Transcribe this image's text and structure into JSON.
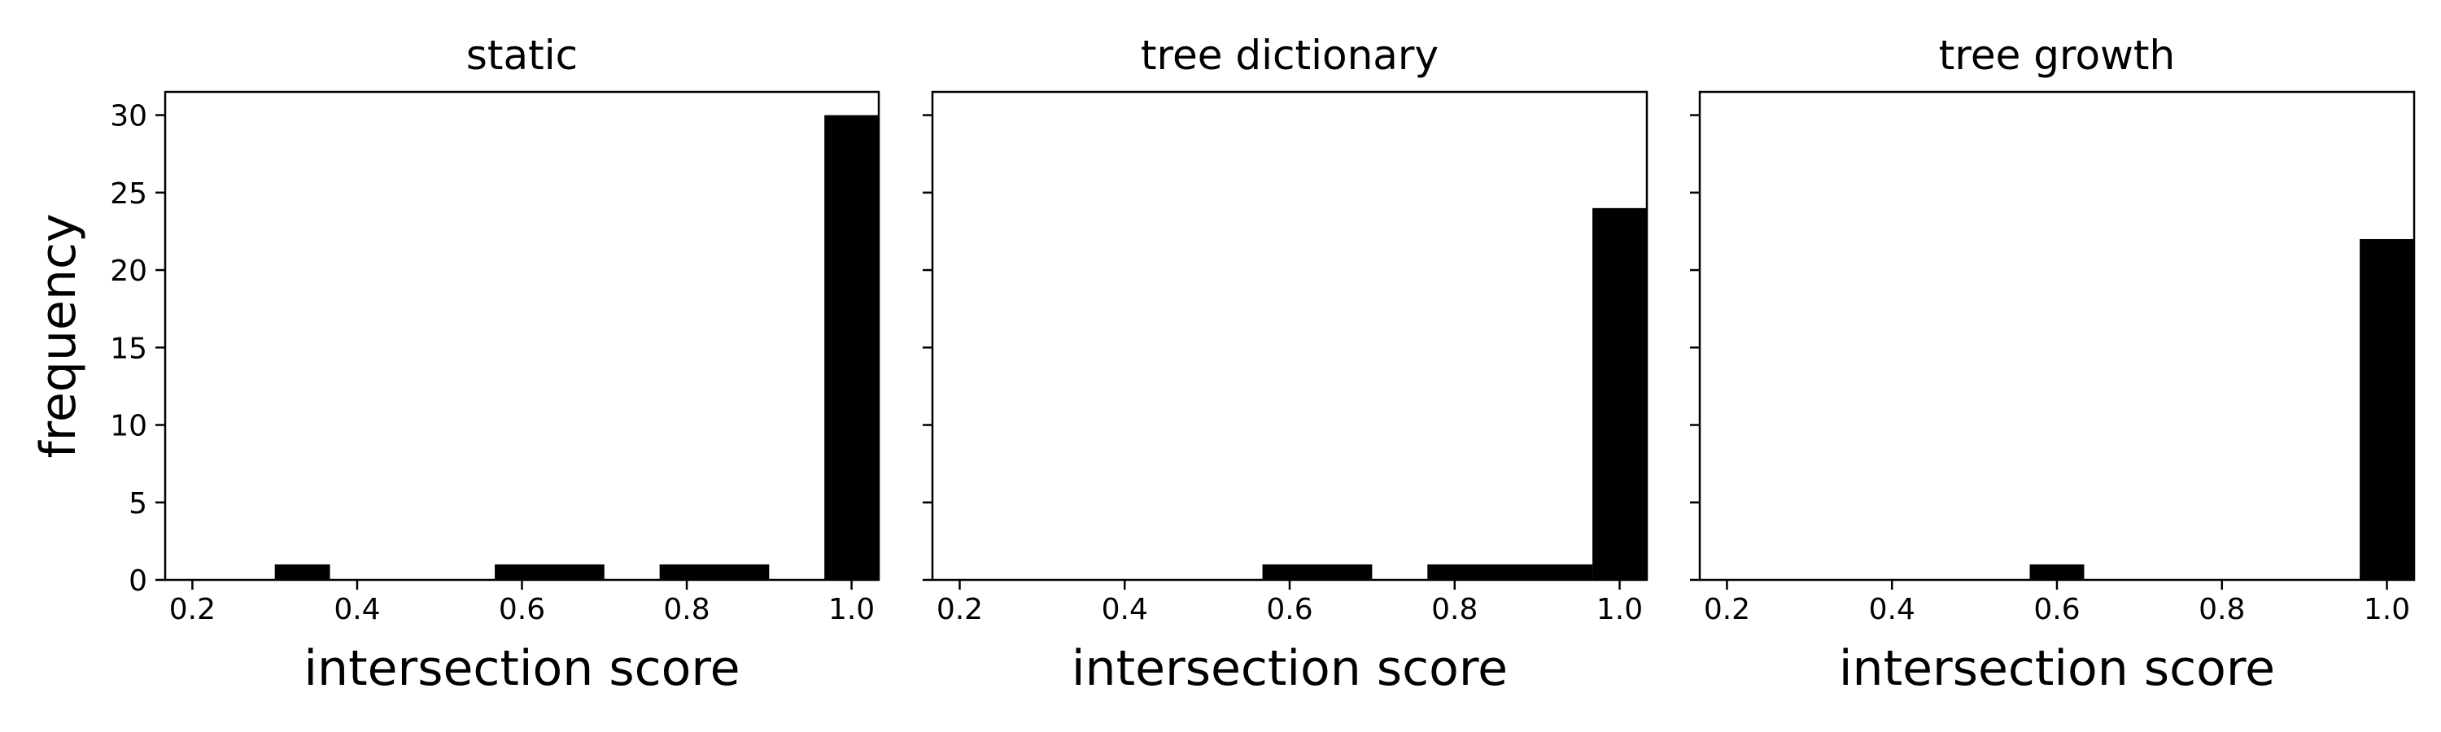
{
  "chart_data": [
    {
      "type": "bar",
      "title": "static",
      "xlabel": "intersection score",
      "ylabel": "frequency",
      "xlim": [
        0.167,
        1.033
      ],
      "ylim": [
        0,
        31.5
      ],
      "xticks": [
        "0.2",
        "0.4",
        "0.6",
        "0.8",
        "1.0"
      ],
      "yticks": [
        "0",
        "5",
        "10",
        "15",
        "20",
        "25",
        "30"
      ],
      "bars": [
        {
          "x0": 0.3,
          "x1": 0.367,
          "value": 1
        },
        {
          "x0": 0.567,
          "x1": 0.7,
          "value": 1
        },
        {
          "x0": 0.767,
          "x1": 0.9,
          "value": 1
        },
        {
          "x0": 0.967,
          "x1": 1.033,
          "value": 30
        }
      ],
      "color": "#000000"
    },
    {
      "type": "bar",
      "title": "tree dictionary",
      "xlabel": "intersection score",
      "ylabel": "",
      "xlim": [
        0.167,
        1.033
      ],
      "ylim": [
        0,
        31.5
      ],
      "xticks": [
        "0.2",
        "0.4",
        "0.6",
        "0.8",
        "1.0"
      ],
      "yticks": [],
      "bars": [
        {
          "x0": 0.567,
          "x1": 0.7,
          "value": 1
        },
        {
          "x0": 0.767,
          "x1": 0.967,
          "value": 1
        },
        {
          "x0": 0.967,
          "x1": 1.033,
          "value": 24
        }
      ],
      "color": "#000000"
    },
    {
      "type": "bar",
      "title": "tree growth",
      "xlabel": "intersection score",
      "ylabel": "",
      "xlim": [
        0.167,
        1.033
      ],
      "ylim": [
        0,
        31.5
      ],
      "xticks": [
        "0.2",
        "0.4",
        "0.6",
        "0.8",
        "1.0"
      ],
      "yticks": [],
      "bars": [
        {
          "x0": 0.567,
          "x1": 0.633,
          "value": 1
        },
        {
          "x0": 0.967,
          "x1": 1.033,
          "value": 22
        }
      ],
      "color": "#000000"
    }
  ]
}
